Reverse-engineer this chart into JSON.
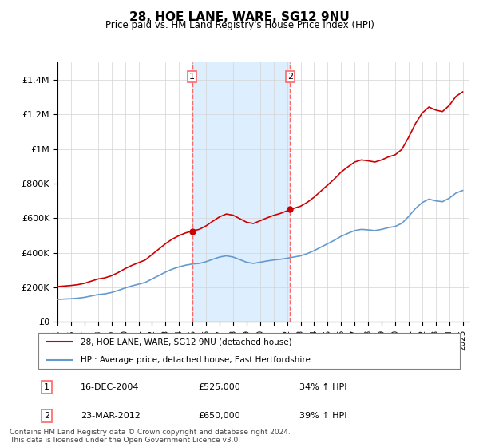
{
  "title": "28, HOE LANE, WARE, SG12 9NU",
  "subtitle": "Price paid vs. HM Land Registry's House Price Index (HPI)",
  "footer_line1": "Contains HM Land Registry data © Crown copyright and database right 2024.",
  "footer_line2": "This data is licensed under the Open Government Licence v3.0.",
  "legend_entry1": "28, HOE LANE, WARE, SG12 9NU (detached house)",
  "legend_entry2": "HPI: Average price, detached house, East Hertfordshire",
  "sale1_label": "1",
  "sale1_date": "16-DEC-2004",
  "sale1_price": "£525,000",
  "sale1_hpi": "34% ↑ HPI",
  "sale2_label": "2",
  "sale2_date": "23-MAR-2012",
  "sale2_price": "£650,000",
  "sale2_hpi": "39% ↑ HPI",
  "price_color": "#cc0000",
  "hpi_color": "#6699cc",
  "shade_color": "#ddeeff",
  "vline_color": "#ff6666",
  "ylim": [
    0,
    1500000
  ],
  "yticks": [
    0,
    200000,
    400000,
    600000,
    800000,
    1000000,
    1200000,
    1400000
  ],
  "ytick_labels": [
    "£0",
    "£200K",
    "£400K",
    "£600K",
    "£800K",
    "£1M",
    "£1.2M",
    "£1.4M"
  ],
  "sale1_x": 2004.96,
  "sale2_x": 2012.23,
  "background_color": "#f8f8f8"
}
